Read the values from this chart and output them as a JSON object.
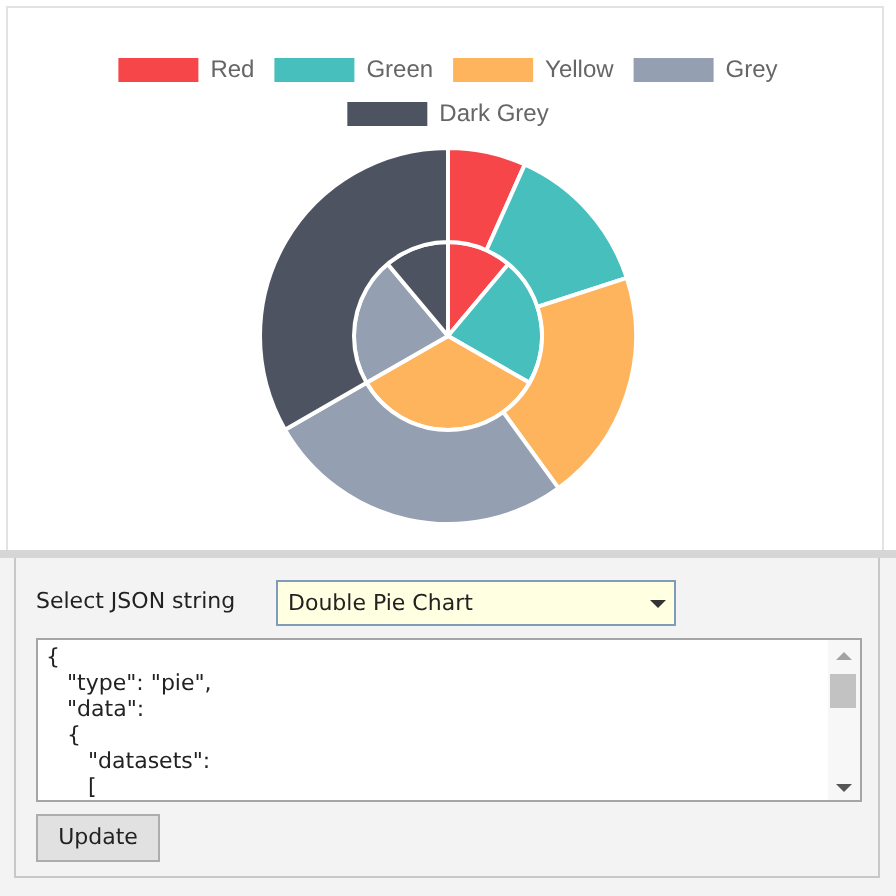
{
  "chart_data": {
    "type": "pie",
    "categories": [
      "Red",
      "Green",
      "Yellow",
      "Grey",
      "Dark Grey"
    ],
    "colors": [
      "#f7464a",
      "#46bfbd",
      "#fdb45c",
      "#949fb1",
      "#4d5360"
    ],
    "series": [
      {
        "values": [
          6.7,
          13.3,
          20,
          26.7,
          33.3
        ]
      },
      {
        "values": [
          11.1,
          22.2,
          33.4,
          22.2,
          11.1
        ]
      }
    ],
    "legend": "top",
    "annotations": [
      "Select JSON string",
      "Double Pie Chart",
      "{\n   \"type\": \"pie\",\n   \"data\":\n   {\n      \"datasets\":\n      [",
      "Update"
    ]
  }
}
